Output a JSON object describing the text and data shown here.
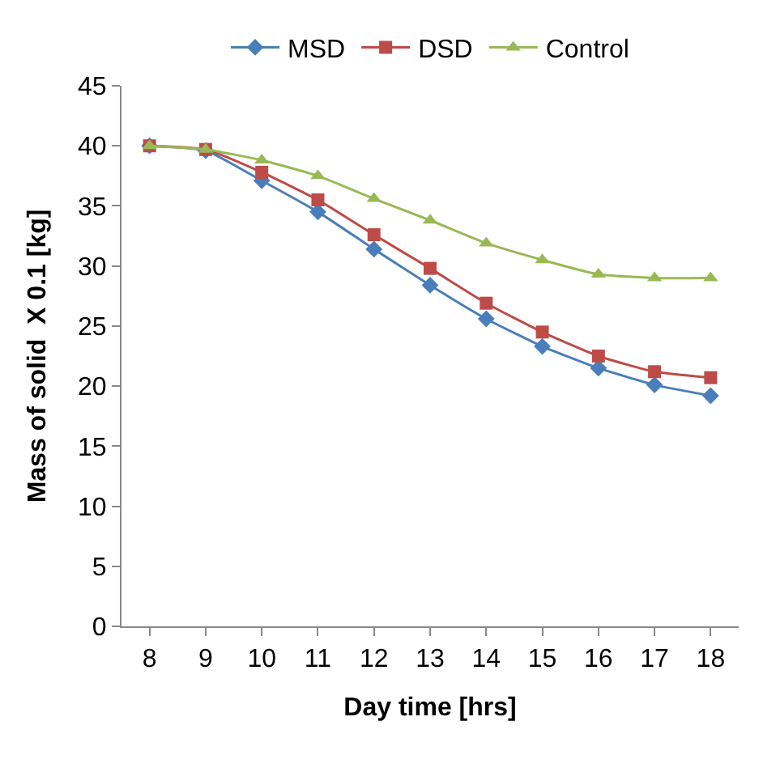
{
  "chart_data": {
    "type": "line",
    "xlabel": "Day time [hrs]",
    "ylabel": "Mass of solid  X 0.1 [kg]",
    "categories": [
      "8",
      "9",
      "10",
      "11",
      "12",
      "13",
      "14",
      "15",
      "16",
      "17",
      "18"
    ],
    "series": [
      {
        "name": "MSD",
        "color": "#4a7ebb",
        "marker": "diamond",
        "values": [
          40,
          39.6,
          37.1,
          34.5,
          31.4,
          28.4,
          25.6,
          23.3,
          21.5,
          20.1,
          19.2
        ]
      },
      {
        "name": "DSD",
        "color": "#be4b48",
        "marker": "square",
        "values": [
          40,
          39.7,
          37.8,
          35.5,
          32.6,
          29.8,
          26.9,
          24.5,
          22.5,
          21.2,
          20.7
        ]
      },
      {
        "name": "Control",
        "color": "#98b954",
        "marker": "triangle",
        "values": [
          40,
          39.7,
          38.8,
          37.5,
          35.6,
          33.8,
          31.9,
          30.5,
          29.3,
          29.0,
          29.0
        ]
      }
    ],
    "ylim": [
      0,
      45
    ],
    "yticks": [
      0,
      5,
      10,
      15,
      20,
      25,
      30,
      35,
      40,
      45
    ],
    "legend": "top"
  }
}
